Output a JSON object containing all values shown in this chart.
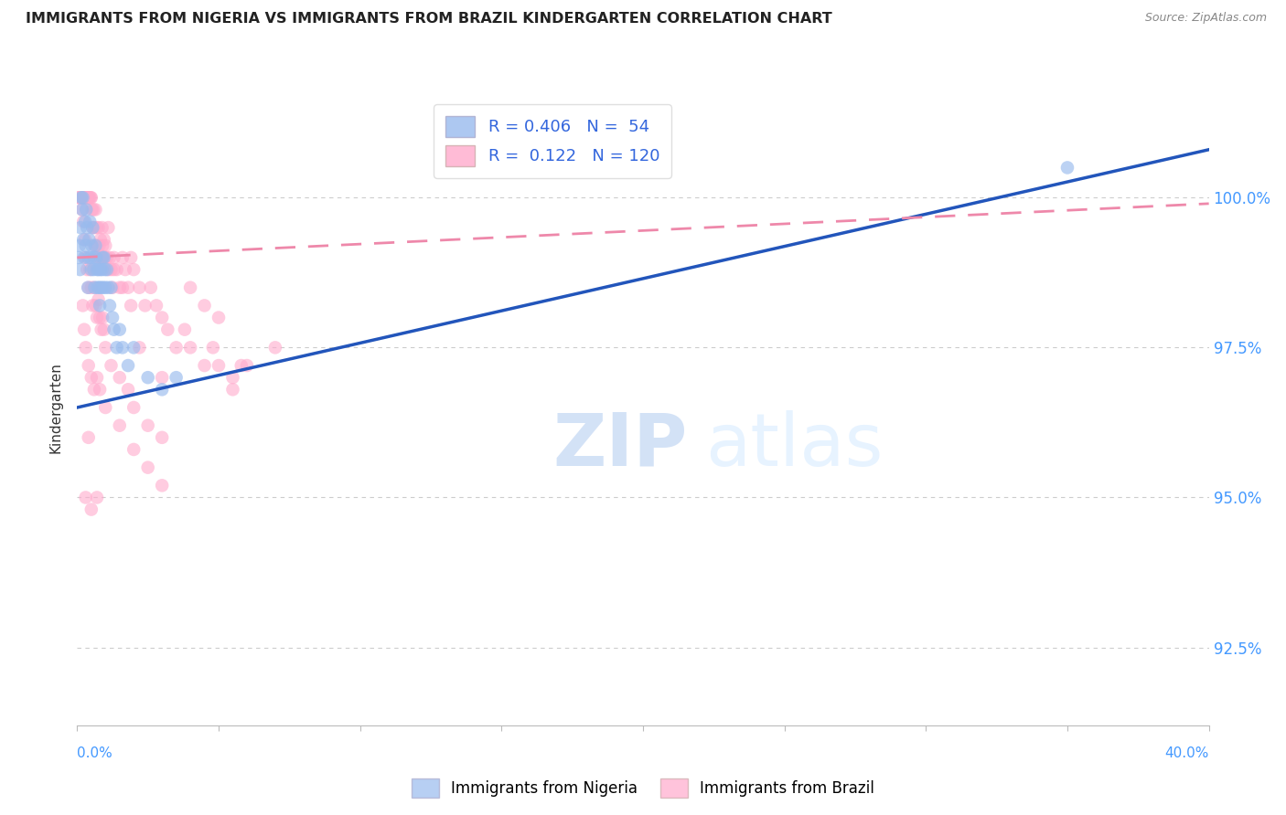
{
  "title": "IMMIGRANTS FROM NIGERIA VS IMMIGRANTS FROM BRAZIL KINDERGARTEN CORRELATION CHART",
  "source": "Source: ZipAtlas.com",
  "ylabel": "Kindergarten",
  "ytick_values": [
    92.5,
    95.0,
    97.5,
    100.0
  ],
  "xrange": [
    0.0,
    40.0
  ],
  "yrange": [
    91.2,
    101.8
  ],
  "plot_ymin": 93.8,
  "plot_ymax": 100.8,
  "nigeria_color": "#99BBEE",
  "brazil_color": "#FFAACC",
  "nigeria_R": 0.406,
  "nigeria_N": 54,
  "brazil_R": 0.122,
  "brazil_N": 120,
  "nigeria_line_color": "#2255BB",
  "brazil_line_color": "#EE88AA",
  "watermark_zip": "ZIP",
  "watermark_atlas": "atlas",
  "legend_label_nigeria": "Immigrants from Nigeria",
  "legend_label_brazil": "Immigrants from Brazil",
  "nigeria_line_x": [
    0.0,
    40.0
  ],
  "nigeria_line_y": [
    96.5,
    100.8
  ],
  "brazil_line_x": [
    0.0,
    40.0
  ],
  "brazil_line_y": [
    99.0,
    99.9
  ],
  "nigeria_points": [
    [
      0.05,
      99.0
    ],
    [
      0.08,
      99.2
    ],
    [
      0.1,
      98.8
    ],
    [
      0.12,
      99.5
    ],
    [
      0.15,
      100.0
    ],
    [
      0.18,
      99.8
    ],
    [
      0.2,
      100.0
    ],
    [
      0.22,
      99.3
    ],
    [
      0.25,
      99.0
    ],
    [
      0.28,
      99.6
    ],
    [
      0.3,
      99.2
    ],
    [
      0.32,
      99.8
    ],
    [
      0.35,
      99.5
    ],
    [
      0.38,
      98.5
    ],
    [
      0.4,
      99.0
    ],
    [
      0.42,
      99.3
    ],
    [
      0.45,
      99.6
    ],
    [
      0.48,
      99.0
    ],
    [
      0.5,
      98.8
    ],
    [
      0.52,
      99.2
    ],
    [
      0.55,
      99.5
    ],
    [
      0.58,
      98.8
    ],
    [
      0.6,
      99.0
    ],
    [
      0.62,
      98.5
    ],
    [
      0.65,
      99.2
    ],
    [
      0.68,
      99.0
    ],
    [
      0.7,
      98.8
    ],
    [
      0.72,
      98.5
    ],
    [
      0.75,
      98.8
    ],
    [
      0.78,
      98.5
    ],
    [
      0.8,
      98.2
    ],
    [
      0.82,
      98.8
    ],
    [
      0.85,
      98.5
    ],
    [
      0.88,
      98.8
    ],
    [
      0.9,
      99.0
    ],
    [
      0.92,
      98.5
    ],
    [
      0.95,
      99.0
    ],
    [
      0.98,
      98.8
    ],
    [
      1.0,
      98.5
    ],
    [
      1.05,
      98.8
    ],
    [
      1.1,
      98.5
    ],
    [
      1.15,
      98.2
    ],
    [
      1.2,
      98.5
    ],
    [
      1.25,
      98.0
    ],
    [
      1.3,
      97.8
    ],
    [
      1.4,
      97.5
    ],
    [
      1.5,
      97.8
    ],
    [
      1.6,
      97.5
    ],
    [
      1.8,
      97.2
    ],
    [
      2.0,
      97.5
    ],
    [
      2.5,
      97.0
    ],
    [
      3.0,
      96.8
    ],
    [
      3.5,
      97.0
    ],
    [
      35.0,
      100.5
    ]
  ],
  "brazil_points": [
    [
      0.05,
      100.0
    ],
    [
      0.08,
      100.0
    ],
    [
      0.1,
      100.0
    ],
    [
      0.12,
      100.0
    ],
    [
      0.15,
      100.0
    ],
    [
      0.18,
      100.0
    ],
    [
      0.2,
      100.0
    ],
    [
      0.22,
      100.0
    ],
    [
      0.25,
      100.0
    ],
    [
      0.28,
      100.0
    ],
    [
      0.3,
      100.0
    ],
    [
      0.32,
      100.0
    ],
    [
      0.35,
      100.0
    ],
    [
      0.38,
      100.0
    ],
    [
      0.4,
      100.0
    ],
    [
      0.42,
      100.0
    ],
    [
      0.45,
      100.0
    ],
    [
      0.48,
      100.0
    ],
    [
      0.5,
      100.0
    ],
    [
      0.52,
      99.8
    ],
    [
      0.55,
      99.5
    ],
    [
      0.58,
      99.8
    ],
    [
      0.6,
      99.5
    ],
    [
      0.62,
      99.2
    ],
    [
      0.65,
      99.8
    ],
    [
      0.68,
      99.5
    ],
    [
      0.7,
      99.2
    ],
    [
      0.72,
      99.0
    ],
    [
      0.75,
      99.5
    ],
    [
      0.78,
      99.2
    ],
    [
      0.8,
      99.0
    ],
    [
      0.82,
      99.3
    ],
    [
      0.85,
      99.0
    ],
    [
      0.88,
      99.5
    ],
    [
      0.9,
      99.2
    ],
    [
      0.92,
      99.0
    ],
    [
      0.95,
      99.3
    ],
    [
      0.98,
      99.0
    ],
    [
      1.0,
      99.2
    ],
    [
      1.05,
      99.0
    ],
    [
      1.1,
      98.8
    ],
    [
      1.15,
      99.0
    ],
    [
      1.2,
      98.8
    ],
    [
      1.25,
      98.5
    ],
    [
      1.3,
      99.0
    ],
    [
      1.4,
      98.8
    ],
    [
      1.5,
      98.5
    ],
    [
      1.6,
      99.0
    ],
    [
      1.7,
      98.8
    ],
    [
      1.8,
      98.5
    ],
    [
      1.9,
      99.0
    ],
    [
      2.0,
      98.8
    ],
    [
      2.2,
      98.5
    ],
    [
      2.4,
      98.2
    ],
    [
      2.6,
      98.5
    ],
    [
      2.8,
      98.2
    ],
    [
      3.0,
      98.0
    ],
    [
      3.2,
      97.8
    ],
    [
      3.5,
      97.5
    ],
    [
      3.8,
      97.8
    ],
    [
      4.0,
      97.5
    ],
    [
      4.5,
      97.2
    ],
    [
      4.8,
      97.5
    ],
    [
      5.0,
      97.2
    ],
    [
      5.5,
      97.0
    ],
    [
      6.0,
      97.2
    ],
    [
      0.3,
      99.0
    ],
    [
      0.35,
      98.8
    ],
    [
      0.4,
      98.5
    ],
    [
      0.45,
      98.8
    ],
    [
      0.5,
      98.5
    ],
    [
      0.55,
      98.2
    ],
    [
      0.6,
      98.5
    ],
    [
      0.65,
      98.2
    ],
    [
      0.7,
      98.0
    ],
    [
      0.75,
      98.3
    ],
    [
      0.8,
      98.0
    ],
    [
      0.85,
      97.8
    ],
    [
      0.9,
      98.0
    ],
    [
      0.95,
      97.8
    ],
    [
      1.0,
      97.5
    ],
    [
      1.2,
      97.2
    ],
    [
      1.5,
      97.0
    ],
    [
      1.8,
      96.8
    ],
    [
      2.0,
      96.5
    ],
    [
      2.5,
      96.2
    ],
    [
      3.0,
      96.0
    ],
    [
      0.2,
      98.2
    ],
    [
      0.25,
      97.8
    ],
    [
      0.3,
      97.5
    ],
    [
      0.4,
      97.2
    ],
    [
      0.5,
      97.0
    ],
    [
      0.6,
      96.8
    ],
    [
      0.7,
      97.0
    ],
    [
      0.8,
      96.8
    ],
    [
      1.0,
      96.5
    ],
    [
      1.5,
      96.2
    ],
    [
      2.0,
      95.8
    ],
    [
      2.5,
      95.5
    ],
    [
      3.0,
      95.2
    ],
    [
      0.3,
      95.0
    ],
    [
      0.5,
      94.8
    ],
    [
      0.7,
      95.0
    ],
    [
      0.4,
      96.0
    ],
    [
      7.0,
      97.5
    ],
    [
      5.5,
      96.8
    ],
    [
      5.0,
      98.0
    ],
    [
      5.8,
      97.2
    ],
    [
      0.15,
      100.0
    ],
    [
      0.18,
      99.8
    ],
    [
      0.22,
      99.6
    ],
    [
      0.28,
      99.3
    ],
    [
      1.1,
      99.5
    ],
    [
      1.3,
      98.8
    ],
    [
      1.6,
      98.5
    ],
    [
      1.9,
      98.2
    ],
    [
      2.2,
      97.5
    ],
    [
      3.0,
      97.0
    ],
    [
      4.0,
      98.5
    ],
    [
      4.5,
      98.2
    ]
  ]
}
